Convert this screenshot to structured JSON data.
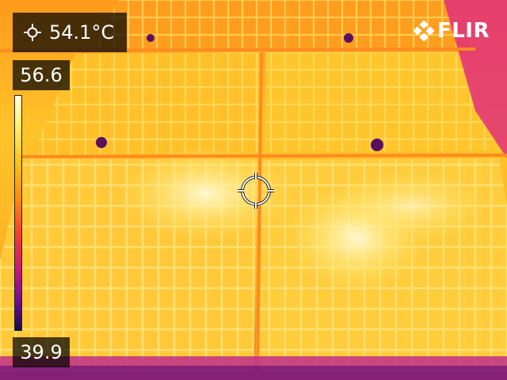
{
  "measurement": {
    "spot_value": "54.1°C",
    "icon": "spot-meter-icon"
  },
  "scale": {
    "max": "56.6",
    "min": "39.9",
    "palette": "iron"
  },
  "brand": {
    "name": "FLIR",
    "icon": "flir-logo-icon"
  },
  "colors": {
    "hot": "#fff2a0",
    "warm": "#ffc21a",
    "mid": "#ff8a0c",
    "cool": "#c8187c",
    "cold": "#1a0a50"
  }
}
